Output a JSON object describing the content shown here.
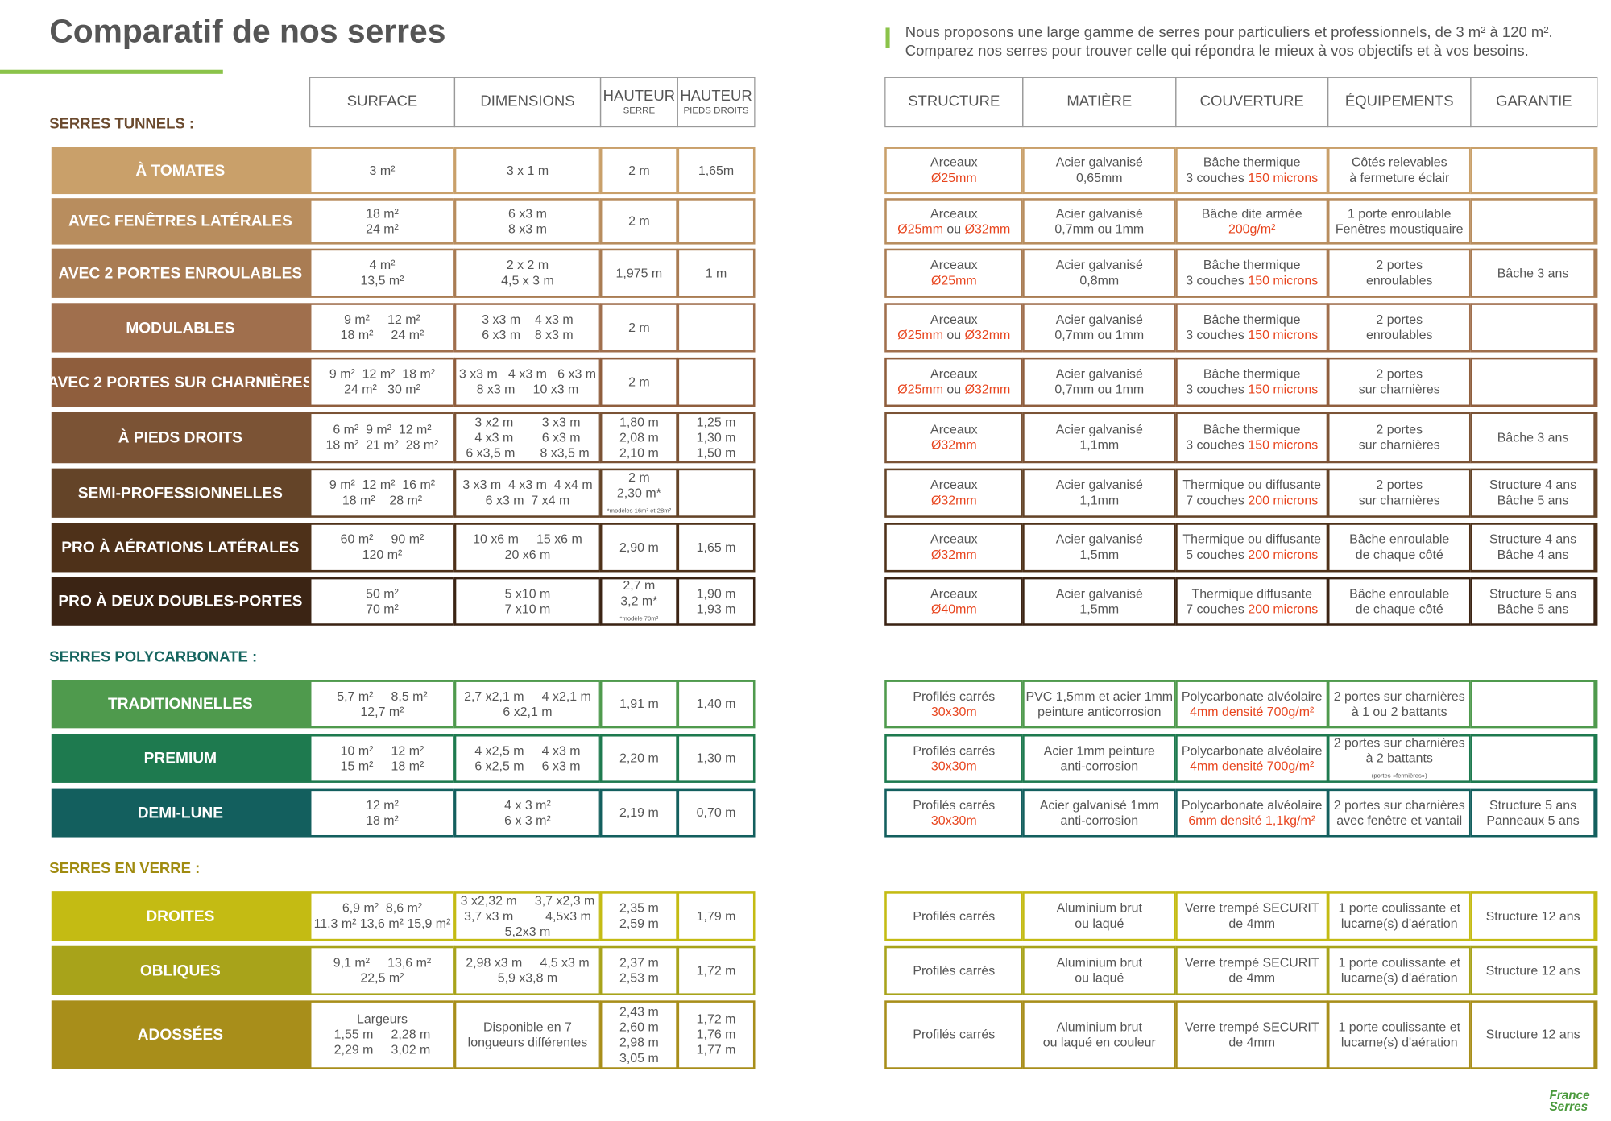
{
  "header": {
    "title": "Comparatif de nos serres",
    "intro": [
      "Nous proposons une large gamme de serres pour particuliers et professionnels, de 3 m² à 120 m².",
      "Comparez nos serres pour trouver celle qui répondra le mieux à vos objectifs et à vos besoins."
    ]
  },
  "columns_left": [
    {
      "text": "SURFACE"
    },
    {
      "text": "DIMENSIONS"
    },
    {
      "text": "HAUTEUR",
      "sub": "SERRE"
    },
    {
      "text": "HAUTEUR",
      "sub": "PIEDS DROITS"
    }
  ],
  "columns_right": [
    {
      "text": "STRUCTURE"
    },
    {
      "text": "MATIÈRE"
    },
    {
      "text": "COUVERTURE"
    },
    {
      "text": "ÉQUIPEMENTS"
    },
    {
      "text": "GARANTIE"
    }
  ],
  "sections": [
    {
      "label": "SERRES TUNNELS :",
      "color": "#6b4a2e",
      "rows": [
        {
          "name": "À TOMATES",
          "color": "#c9a06a",
          "cells": [
            [
              "3 m²"
            ],
            [
              "3 x 1 m"
            ],
            [
              "2 m"
            ],
            [
              "1,65m"
            ],
            [
              "Arceaux",
              [
                {
                  "text": "Ø25mm",
                  "accent": true
                }
              ]
            ],
            [
              "Acier galvanisé",
              "0,65mm"
            ],
            [
              "Bâche thermique",
              [
                "3 couches ",
                {
                  "text": "150 microns",
                  "accent": true
                }
              ]
            ],
            [
              "Côtés relevables",
              "à fermeture éclair"
            ],
            []
          ]
        },
        {
          "name": "AVEC FENÊTRES LATÉRALES",
          "color": "#b88d5e",
          "cells": [
            [
              "18 m²",
              "24 m²"
            ],
            [
              "6 x3 m",
              "8 x3 m"
            ],
            [
              "2 m"
            ],
            [],
            [
              "Arceaux",
              [
                {
                  "text": "Ø25mm",
                  "accent": true
                },
                " ou ",
                {
                  "text": "Ø32mm",
                  "accent": true
                }
              ]
            ],
            [
              "Acier galvanisé",
              "0,7mm ou 1mm"
            ],
            [
              "Bâche dite armée",
              [
                {
                  "text": "200g/m²",
                  "accent": true
                }
              ]
            ],
            [
              "1 porte enroulable",
              "Fenêtres moustiquaire"
            ],
            []
          ]
        },
        {
          "name": "AVEC 2 PORTES ENROULABLES",
          "color": "#a97c53",
          "cells": [
            [
              "4 m²",
              "13,5 m²"
            ],
            [
              "2 x 2 m",
              "4,5 x 3 m"
            ],
            [
              "1,975 m"
            ],
            [
              "1 m"
            ],
            [
              "Arceaux",
              [
                {
                  "text": "Ø25mm",
                  "accent": true
                }
              ]
            ],
            [
              "Acier galvanisé",
              "0,8mm"
            ],
            [
              "Bâche thermique",
              [
                "3 couches ",
                {
                  "text": "150 microns",
                  "accent": true
                }
              ]
            ],
            [
              "2 portes",
              "enroulables"
            ],
            [
              "Bâche 3 ans"
            ]
          ]
        },
        {
          "name": "MODULABLES",
          "color": "#a06f4d",
          "cells": [
            [
              "9 m²     12 m²",
              "18 m²     24 m²"
            ],
            [
              "3 x3 m    4 x3 m",
              "6 x3 m    8 x3 m"
            ],
            [
              "2 m"
            ],
            [],
            [
              "Arceaux",
              [
                {
                  "text": "Ø25mm",
                  "accent": true
                },
                " ou ",
                {
                  "text": "Ø32mm",
                  "accent": true
                }
              ]
            ],
            [
              "Acier galvanisé",
              "0,7mm ou 1mm"
            ],
            [
              "Bâche thermique",
              [
                "3 couches ",
                {
                  "text": "150 microns",
                  "accent": true
                }
              ]
            ],
            [
              "2 portes",
              "enroulables"
            ],
            []
          ]
        },
        {
          "name": "AVEC 2 PORTES SUR CHARNIÈRES",
          "color": "#8f5e3d",
          "cells": [
            [
              "9 m²  12 m²  18 m²",
              "24 m²   30 m²"
            ],
            [
              "3 x3 m   4 x3 m   6 x3 m",
              "8 x3 m     10 x3 m"
            ],
            [
              "2 m"
            ],
            [],
            [
              "Arceaux",
              [
                {
                  "text": "Ø25mm",
                  "accent": true
                },
                " ou ",
                {
                  "text": "Ø32mm",
                  "accent": true
                }
              ]
            ],
            [
              "Acier galvanisé",
              "0,7mm ou 1mm"
            ],
            [
              "Bâche thermique",
              [
                "3 couches ",
                {
                  "text": "150 microns",
                  "accent": true
                }
              ]
            ],
            [
              "2 portes",
              "sur charnières"
            ],
            []
          ]
        },
        {
          "name": "À PIEDS DROITS",
          "color": "#7b5335",
          "cells": [
            [
              "6 m²  9 m²  12 m²",
              "18 m²  21 m²  28 m²"
            ],
            [
              "3 x2 m        3 x3 m",
              "4 x3 m        6 x3 m",
              "6 x3,5 m       8 x3,5 m"
            ],
            [
              "1,80 m",
              "2,08 m",
              "2,10 m"
            ],
            [
              "1,25 m",
              "1,30 m",
              "1,50 m"
            ],
            [
              "Arceaux",
              [
                {
                  "text": "Ø32mm",
                  "accent": true
                }
              ]
            ],
            [
              "Acier galvanisé",
              "1,1mm"
            ],
            [
              "Bâche thermique",
              [
                "3 couches ",
                {
                  "text": "150 microns",
                  "accent": true
                }
              ]
            ],
            [
              "2 portes",
              "sur charnières"
            ],
            [
              "Bâche 3 ans"
            ]
          ]
        },
        {
          "name": "SEMI-PROFESSIONNELLES",
          "color": "#644428",
          "cells": [
            [
              "9 m²  12 m²  16 m²",
              "18 m²    28 m²"
            ],
            [
              "3 x3 m  4 x3 m  4 x4 m",
              "6 x3 m  7 x4 m"
            ],
            [
              "2 m",
              "2,30 m*",
              [
                {
                  "text": "*modèles 16m² et 28m²",
                  "small": true
                }
              ]
            ],
            [],
            [
              "Arceaux",
              [
                {
                  "text": "Ø32mm",
                  "accent": true
                }
              ]
            ],
            [
              "Acier galvanisé",
              "1,1mm"
            ],
            [
              "Thermique ou diffusante",
              [
                "7 couches ",
                {
                  "text": "200 microns",
                  "accent": true
                }
              ]
            ],
            [
              "2 portes",
              "sur charnières"
            ],
            [
              "Structure 4 ans",
              "Bâche 5 ans"
            ]
          ]
        },
        {
          "name": "PRO À AÉRATIONS LATÉRALES",
          "color": "#4e3119",
          "cells": [
            [
              "60 m²     90 m²",
              "120 m²"
            ],
            [
              "10 x6 m     15 x6 m",
              "20 x6 m"
            ],
            [
              "2,90 m"
            ],
            [
              "1,65 m"
            ],
            [
              "Arceaux",
              [
                {
                  "text": "Ø32mm",
                  "accent": true
                }
              ]
            ],
            [
              "Acier galvanisé",
              "1,5mm"
            ],
            [
              "Thermique ou diffusante",
              [
                "5 couches ",
                {
                  "text": "200 microns",
                  "accent": true
                }
              ]
            ],
            [
              "Bâche enroulable",
              "de chaque côté"
            ],
            [
              "Structure 4 ans",
              "Bâche 4 ans"
            ]
          ]
        },
        {
          "name": "PRO À DEUX DOUBLES-PORTES",
          "color": "#3b2414",
          "cells": [
            [
              "50 m²",
              "70 m²"
            ],
            [
              "5 x10 m",
              "7 x10 m"
            ],
            [
              "2,7 m",
              "3,2 m*",
              [
                {
                  "text": "*modèle 70m²",
                  "small": true
                }
              ]
            ],
            [
              "1,90 m",
              "1,93 m"
            ],
            [
              "Arceaux",
              [
                {
                  "text": "Ø40mm",
                  "accent": true
                }
              ]
            ],
            [
              "Acier galvanisé",
              "1,5mm"
            ],
            [
              "Thermique diffusante",
              [
                "7 couches ",
                {
                  "text": "200 microns",
                  "accent": true
                }
              ]
            ],
            [
              "Bâche enroulable",
              "de chaque côté"
            ],
            [
              "Structure 5 ans",
              "Bâche 5 ans"
            ]
          ]
        }
      ]
    },
    {
      "label": "SERRES POLYCARBONATE :",
      "color": "#16655f",
      "rows": [
        {
          "name": "TRADITIONNELLES",
          "color": "#4f9a4d",
          "cells": [
            [
              "5,7 m²     8,5 m²",
              "12,7 m²"
            ],
            [
              "2,7 x2,1 m     4 x2,1 m",
              "6 x2,1 m"
            ],
            [
              "1,91 m"
            ],
            [
              "1,40 m"
            ],
            [
              "Profilés carrés",
              [
                {
                  "text": "30x30m",
                  "accent": true
                }
              ]
            ],
            [
              "PVC 1,5mm et acier 1mm",
              "peinture anticorrosion"
            ],
            [
              "Polycarbonate alvéolaire",
              [
                {
                  "text": "4mm densité 700g/m²",
                  "accent": true
                }
              ]
            ],
            [
              "2 portes sur charnières",
              "à 1 ou 2 battants"
            ],
            []
          ]
        },
        {
          "name": "PREMIUM",
          "color": "#1e7a4f",
          "cells": [
            [
              "10 m²     12 m²",
              "15 m²     18 m²"
            ],
            [
              "4 x2,5 m     4 x3 m",
              "6 x2,5 m     6 x3 m"
            ],
            [
              "2,20 m"
            ],
            [
              "1,30 m"
            ],
            [
              "Profilés carrés",
              [
                {
                  "text": "30x30m",
                  "accent": true
                }
              ]
            ],
            [
              "Acier 1mm peinture",
              "anti-corrosion"
            ],
            [
              "Polycarbonate alvéolaire",
              [
                {
                  "text": "4mm densité 700g/m²",
                  "accent": true
                }
              ]
            ],
            [
              "2 portes sur charnières",
              "à 2 battants",
              [
                {
                  "text": "(portes «fermières»)",
                  "small": true
                }
              ]
            ],
            []
          ]
        },
        {
          "name": "DEMI-LUNE",
          "color": "#135f5e",
          "cells": [
            [
              "12 m²",
              "18 m²"
            ],
            [
              "4 x 3 m²",
              "6 x 3 m²"
            ],
            [
              "2,19 m"
            ],
            [
              "0,70 m"
            ],
            [
              "Profilés carrés",
              [
                {
                  "text": "30x30m",
                  "accent": true
                }
              ]
            ],
            [
              "Acier galvanisé 1mm",
              "anti-corrosion"
            ],
            [
              "Polycarbonate alvéolaire",
              [
                {
                  "text": "6mm densité 1,1kg/m²",
                  "accent": true
                }
              ]
            ],
            [
              "2 portes sur charnières",
              "avec fenêtre et vantail"
            ],
            [
              "Structure 5 ans",
              "Panneaux 5 ans"
            ]
          ]
        }
      ]
    },
    {
      "label": "SERRES EN VERRE :",
      "color": "#a08b10",
      "rows": [
        {
          "name": "DROITES",
          "color": "#c4bb13",
          "cells": [
            [
              "6,9 m²  8,6 m²",
              "11,3 m² 13,6 m² 15,9 m²"
            ],
            [
              "3 x2,32 m     3,7 x2,3 m",
              "3,7 x3 m         4,5x3 m",
              "5,2x3 m"
            ],
            [
              "2,35 m",
              "2,59 m"
            ],
            [
              "1,79 m"
            ],
            [
              "Profilés carrés"
            ],
            [
              "Aluminium brut",
              "ou laqué"
            ],
            [
              "Verre trempé SECURIT",
              "de 4mm"
            ],
            [
              "1 porte coulissante et",
              "lucarne(s) d'aération"
            ],
            [
              "Structure 12 ans"
            ]
          ]
        },
        {
          "name": "OBLIQUES",
          "color": "#a8a31a",
          "cells": [
            [
              "9,1 m²     13,6 m²",
              "22,5 m²"
            ],
            [
              "2,98 x3 m     4,5 x3 m",
              "5,9 x3,8 m"
            ],
            [
              "2,37 m",
              "2,53 m"
            ],
            [
              "1,72 m"
            ],
            [
              "Profilés carrés"
            ],
            [
              "Aluminium brut",
              "ou laqué"
            ],
            [
              "Verre trempé SECURIT",
              "de 4mm"
            ],
            [
              "1 porte coulissante et",
              "lucarne(s) d'aération"
            ],
            [
              "Structure 12 ans"
            ]
          ]
        },
        {
          "name": "ADOSSÉES",
          "color": "#a88e1a",
          "cells": [
            [
              "Largeurs",
              "1,55 m     2,28 m",
              "2,29 m     3,02 m"
            ],
            [
              "Disponible en 7",
              "longueurs différentes"
            ],
            [
              "2,43 m",
              "2,60 m",
              "2,98 m",
              "3,05 m"
            ],
            [
              "1,72 m",
              "1,76 m",
              "1,77 m"
            ],
            [
              "Profilés carrés"
            ],
            [
              "Aluminium brut",
              "ou laqué en couleur"
            ],
            [
              "Verre trempé SECURIT",
              "de 4mm"
            ],
            [
              "1 porte coulissante et",
              "lucarne(s) d'aération"
            ],
            [
              "Structure 12 ans"
            ]
          ]
        }
      ]
    }
  ],
  "logo": [
    "France",
    "Serres"
  ]
}
